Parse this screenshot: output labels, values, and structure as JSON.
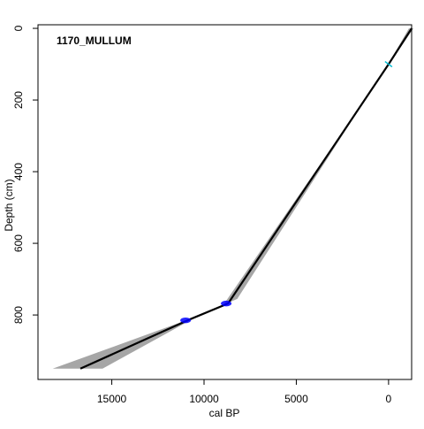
{
  "chart_data": {
    "type": "line",
    "title": "1170_MULLUM",
    "xlabel": "cal BP",
    "ylabel": "Depth (cm)",
    "x_reversed": true,
    "y_reversed": true,
    "xlim": [
      19000,
      -1250
    ],
    "ylim": [
      -10,
      980
    ],
    "x_ticks": [
      15000,
      10000,
      5000,
      0
    ],
    "y_ticks": [
      0,
      200,
      400,
      600,
      800
    ],
    "x_tick_labels": [
      "15000",
      "10000",
      "5000",
      "0"
    ],
    "y_tick_labels": [
      "0",
      "200",
      "400",
      "600",
      "800"
    ],
    "grid": false,
    "series": [
      {
        "role": "age-depth model",
        "color": "#000000",
        "points": [
          {
            "age": -1250,
            "depth": 0
          },
          {
            "age": 0,
            "depth": 100
          },
          {
            "age": 8700,
            "depth": 768
          },
          {
            "age": 10900,
            "depth": 815
          },
          {
            "age": 16700,
            "depth": 950
          }
        ]
      }
    ],
    "uncertainty_band": {
      "color": "#a6a6a6",
      "left_edge": [
        {
          "age": -1100,
          "depth": 0
        },
        {
          "age": 0,
          "depth": 98
        },
        {
          "age": 8200,
          "depth": 755
        },
        {
          "age": 10500,
          "depth": 808
        },
        {
          "age": 15500,
          "depth": 950
        }
      ],
      "right_edge": [
        {
          "age": -1350,
          "depth": 0
        },
        {
          "age": 0,
          "depth": 102
        },
        {
          "age": 9000,
          "depth": 775
        },
        {
          "age": 11400,
          "depth": 823
        },
        {
          "age": 18200,
          "depth": 950
        }
      ]
    },
    "dated_samples": [
      {
        "type": "calibrated-date",
        "age": 8800,
        "depth": 768,
        "color": "#0000ff"
      },
      {
        "type": "calibrated-date",
        "age": 11000,
        "depth": 815,
        "color": "#0000ff"
      },
      {
        "type": "surface-date",
        "age": 0,
        "depth": 100,
        "color": "#00bcd4"
      }
    ],
    "colors": {
      "axis": "#000000",
      "line": "#000000",
      "band": "#a6a6a6",
      "date": "#0000ff",
      "surface": "#00bcd4"
    }
  }
}
